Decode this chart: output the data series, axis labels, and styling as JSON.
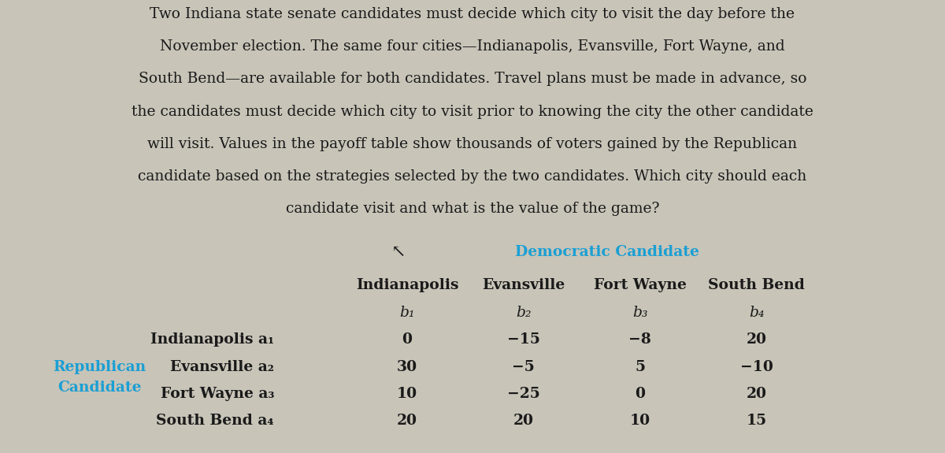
{
  "para_lines": [
    "Two Indiana state senate candidates must decide which city to visit the day before the",
    "November election. The same four cities—Indianapolis, Evansville, Fort Wayne, and",
    "South Bend—are available for both candidates. Travel plans must be made in advance, so",
    "the candidates must decide which city to visit prior to knowing the city the other candidate",
    "will visit. Values in the payoff table show thousands of voters gained by the Republican",
    "candidate based on the strategies selected by the two candidates. Which city should each",
    "candidate visit and what is the value of the game?"
  ],
  "dem_label": "Democratic Candidate",
  "dem_color": "#1a9fd4",
  "rep_label_line1": "Republican",
  "rep_label_line2": "Candidate",
  "rep_color": "#1a9fd4",
  "col_headers": [
    "Indianapolis",
    "Evansville",
    "Fort Wayne",
    "South Bend"
  ],
  "col_subheaders": [
    "b₁",
    "b₂",
    "b₃",
    "b₄"
  ],
  "row_city_names": [
    "Indianapolis",
    "Evansville",
    "Fort Wayne",
    "South Bend"
  ],
  "row_subscripts": [
    "a₁",
    "a₂",
    "a₃",
    "a₄"
  ],
  "payoff_matrix": [
    [
      0,
      -15,
      -8,
      20
    ],
    [
      30,
      -5,
      5,
      -10
    ],
    [
      10,
      -25,
      0,
      20
    ],
    [
      20,
      20,
      10,
      15
    ]
  ],
  "outer_bg": "#c8c4b8",
  "table_bg": "#d8d4c8",
  "text_color": "#1a1a1a",
  "font_size_para": 13.5,
  "font_size_header": 13.5,
  "font_size_cell": 13.5
}
